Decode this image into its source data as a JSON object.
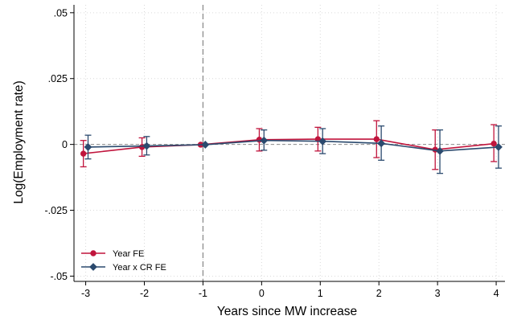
{
  "chart_data": {
    "type": "line",
    "title": "",
    "xlabel": "Years since MW increase",
    "ylabel": "Log(Employment rate)",
    "x": [
      -3,
      -2,
      -1,
      0,
      1,
      2,
      3,
      4
    ],
    "x_tick_labels": [
      "-3",
      "-2",
      "-1",
      "0",
      "1",
      "2",
      "3",
      "4"
    ],
    "xlim": [
      -3.2,
      4.15
    ],
    "ylim": [
      -0.052,
      0.053
    ],
    "y_ticks": [
      0.05,
      0.025,
      0,
      -0.025,
      -0.05
    ],
    "y_tick_labels": [
      ".05",
      ".025",
      "0",
      "-.025",
      "-.05"
    ],
    "grid": true,
    "reference_lines": {
      "x": -1,
      "y": 0
    },
    "legend": {
      "placement": "bottom-left"
    },
    "series": [
      {
        "name": "Year FE",
        "color": "#c0143c",
        "marker": "circle",
        "x_offset": -0.04,
        "values": [
          -0.0035,
          -0.001,
          -0.0001,
          0.0018,
          0.002,
          0.002,
          -0.002,
          0.0003
        ],
        "ci_low": [
          -0.0085,
          -0.0045,
          -0.0001,
          -0.0025,
          -0.0025,
          -0.005,
          -0.0095,
          -0.0065
        ],
        "ci_high": [
          0.0015,
          0.0025,
          -0.0001,
          0.006,
          0.0065,
          0.009,
          0.0055,
          0.0075
        ]
      },
      {
        "name": "Year x CR FE",
        "color": "#2b4a6e",
        "marker": "diamond",
        "x_offset": 0.04,
        "values": [
          -0.001,
          -0.0006,
          -0.0001,
          0.0015,
          0.0012,
          0.0004,
          -0.0025,
          -0.001
        ],
        "ci_low": [
          -0.0055,
          -0.004,
          -0.0001,
          -0.0022,
          -0.0035,
          -0.006,
          -0.011,
          -0.009
        ],
        "ci_high": [
          0.0035,
          0.003,
          -0.0001,
          0.0055,
          0.006,
          0.007,
          0.0055,
          0.007
        ]
      }
    ]
  }
}
